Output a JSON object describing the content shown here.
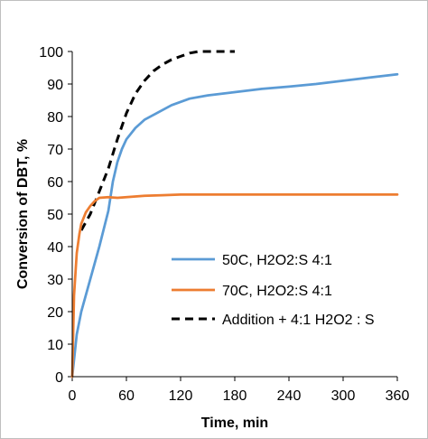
{
  "chart_data": {
    "type": "line",
    "title": "",
    "xlabel": "Time, min",
    "ylabel": "Conversion of DBT, %",
    "xlim": [
      0,
      360
    ],
    "ylim": [
      0,
      100
    ],
    "xticks": [
      0,
      60,
      120,
      180,
      240,
      300,
      360
    ],
    "yticks": [
      0,
      10,
      20,
      30,
      40,
      50,
      60,
      70,
      80,
      90,
      100
    ],
    "grid": false,
    "legend_position": "bottom-right",
    "series": [
      {
        "name": "50C, H2O2:S 4:1",
        "color": "#5b9bd5",
        "style": "solid",
        "x": [
          0,
          5,
          10,
          20,
          30,
          40,
          45,
          50,
          55,
          60,
          70,
          80,
          90,
          100,
          110,
          120,
          130,
          150,
          180,
          210,
          240,
          270,
          300,
          330,
          360
        ],
        "y": [
          0,
          13,
          20,
          30,
          40,
          51,
          60,
          66,
          70,
          73,
          76.5,
          79,
          80.5,
          82,
          83.5,
          84.5,
          85.5,
          86.5,
          87.5,
          88.5,
          89.2,
          90,
          91,
          92,
          93
        ]
      },
      {
        "name": "70C, H2O2:S 4:1",
        "color": "#ed7d31",
        "style": "solid",
        "x": [
          0,
          2,
          5,
          8,
          10,
          15,
          20,
          25,
          30,
          40,
          50,
          60,
          80,
          100,
          120,
          150,
          180,
          240,
          300,
          360
        ],
        "y": [
          0,
          25,
          38,
          44,
          47,
          50.5,
          52.5,
          54,
          55,
          55.2,
          55,
          55.2,
          55.6,
          55.8,
          56,
          56,
          56,
          56,
          56,
          56
        ]
      },
      {
        "name": "Addition + 4:1 H2O2 : S",
        "color": "#000000",
        "style": "dashed",
        "x": [
          10,
          20,
          30,
          40,
          50,
          60,
          70,
          80,
          90,
          100,
          110,
          120,
          130,
          140,
          150,
          160,
          170,
          180
        ],
        "y": [
          45,
          50,
          57,
          64,
          73,
          81,
          87,
          91,
          94,
          96,
          97.5,
          98.5,
          99.5,
          100,
          100,
          100,
          100,
          100
        ]
      }
    ]
  }
}
